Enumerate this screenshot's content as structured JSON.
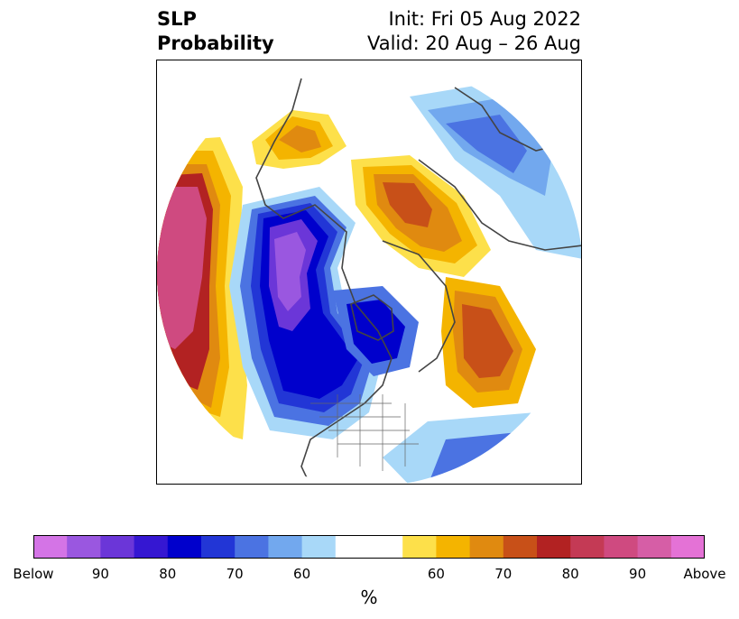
{
  "title": {
    "left_line1": "SLP",
    "left_line2": "Probability",
    "init": "Init: Fri 05 Aug 2022",
    "valid": "Valid: 20 Aug – 26 Aug"
  },
  "map": {
    "projection": "north-polar-stereographic",
    "region": "Northern Hemisphere",
    "anomaly_regions": [
      {
        "name": "north-pacific-above",
        "category": "Above"
      },
      {
        "name": "western-canada-below",
        "category": "Below 90"
      },
      {
        "name": "greenland-europe-above",
        "category": "Above 70"
      },
      {
        "name": "russia-above",
        "category": "Above 70"
      },
      {
        "name": "north-atlantic-below",
        "category": "Below 80"
      },
      {
        "name": "arctic-below",
        "category": "Below 60"
      }
    ]
  },
  "colorbar": {
    "units": "%",
    "tick_labels": [
      "Below",
      "90",
      "80",
      "70",
      "60",
      "60",
      "70",
      "80",
      "90",
      "Above"
    ],
    "colors": [
      "#d474e6",
      "#9a57e0",
      "#6b36d8",
      "#3517d2",
      "#0000cc",
      "#2236d6",
      "#4b73e2",
      "#72a8ee",
      "#a8d8f8",
      "#ffffff",
      "#ffffff",
      "#fde04a",
      "#f4b400",
      "#e08a10",
      "#c85018",
      "#b22222",
      "#c43a55",
      "#cf4a80",
      "#d65ea6",
      "#e472d6"
    ]
  }
}
